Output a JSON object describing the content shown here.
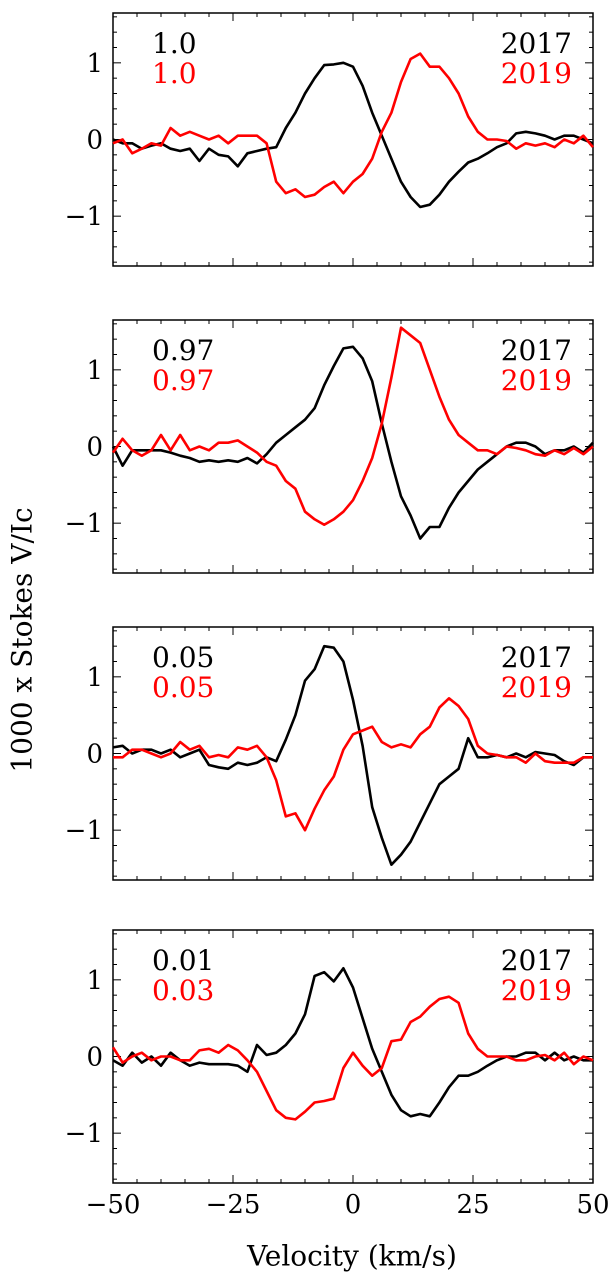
{
  "figure": {
    "xlabel": "Velocity (km/s)",
    "ylabel": "1000 x Stokes V/Ic"
  },
  "colors": {
    "2017": "#000000",
    "2019": "#ff0000"
  },
  "chart_data": [
    {
      "type": "line",
      "xlim": [
        -50,
        50
      ],
      "ylim": [
        -1.65,
        1.65
      ],
      "xticks": [
        -50,
        -25,
        0,
        25,
        50
      ],
      "yticks": [
        -1,
        0,
        1
      ],
      "grid": false,
      "legend": "top-right",
      "phase_labels": [
        "1.0",
        "1.0"
      ],
      "year_labels": [
        "2017",
        "2019"
      ],
      "series": [
        {
          "name": "2017",
          "x": [
            -50,
            -48,
            -46,
            -44,
            -42,
            -40,
            -38,
            -36,
            -34,
            -32,
            -30,
            -28,
            -26,
            -24,
            -22,
            -20,
            -18,
            -16,
            -14,
            -12,
            -10,
            -8,
            -6,
            -4,
            -2,
            0,
            2,
            4,
            6,
            8,
            10,
            12,
            14,
            16,
            18,
            20,
            22,
            24,
            26,
            28,
            30,
            32,
            34,
            36,
            38,
            40,
            42,
            44,
            46,
            48,
            50
          ],
          "y": [
            0.0,
            -0.05,
            -0.05,
            -0.12,
            -0.08,
            -0.05,
            -0.12,
            -0.15,
            -0.12,
            -0.28,
            -0.12,
            -0.2,
            -0.22,
            -0.35,
            -0.18,
            -0.15,
            -0.12,
            -0.1,
            0.15,
            0.35,
            0.6,
            0.8,
            0.97,
            0.98,
            1.0,
            0.95,
            0.7,
            0.35,
            0.05,
            -0.25,
            -0.55,
            -0.75,
            -0.88,
            -0.85,
            -0.72,
            -0.55,
            -0.42,
            -0.3,
            -0.25,
            -0.18,
            -0.1,
            -0.05,
            0.08,
            0.1,
            0.08,
            0.05,
            0.0,
            0.05,
            0.05,
            0.0,
            -0.05
          ]
        },
        {
          "name": "2019",
          "x": [
            -50,
            -48,
            -46,
            -44,
            -42,
            -40,
            -38,
            -36,
            -34,
            -32,
            -30,
            -28,
            -26,
            -24,
            -22,
            -20,
            -18,
            -16,
            -14,
            -12,
            -10,
            -8,
            -6,
            -4,
            -2,
            0,
            2,
            4,
            6,
            8,
            10,
            12,
            14,
            16,
            18,
            20,
            22,
            24,
            26,
            28,
            30,
            32,
            34,
            36,
            38,
            40,
            42,
            44,
            46,
            48,
            50
          ],
          "y": [
            -0.05,
            0.0,
            -0.18,
            -0.12,
            -0.05,
            -0.08,
            0.15,
            0.05,
            0.1,
            0.05,
            0.0,
            0.05,
            -0.05,
            0.05,
            0.05,
            0.05,
            -0.05,
            -0.55,
            -0.7,
            -0.65,
            -0.75,
            -0.72,
            -0.62,
            -0.55,
            -0.7,
            -0.55,
            -0.45,
            -0.25,
            0.1,
            0.35,
            0.75,
            1.05,
            1.12,
            0.95,
            0.95,
            0.8,
            0.6,
            0.3,
            0.1,
            0.0,
            0.0,
            -0.02,
            -0.12,
            -0.05,
            -0.08,
            -0.05,
            -0.1,
            0.0,
            -0.05,
            0.05,
            -0.1
          ]
        }
      ]
    },
    {
      "type": "line",
      "xlim": [
        -50,
        50
      ],
      "ylim": [
        -1.65,
        1.65
      ],
      "xticks": [
        -50,
        -25,
        0,
        25,
        50
      ],
      "yticks": [
        -1,
        0,
        1
      ],
      "grid": false,
      "legend": "top-right",
      "phase_labels": [
        "0.97",
        "0.97"
      ],
      "year_labels": [
        "2017",
        "2019"
      ],
      "series": [
        {
          "name": "2017",
          "x": [
            -50,
            -48,
            -46,
            -44,
            -42,
            -40,
            -38,
            -36,
            -34,
            -32,
            -30,
            -28,
            -26,
            -24,
            -22,
            -20,
            -18,
            -16,
            -14,
            -12,
            -10,
            -8,
            -6,
            -4,
            -2,
            0,
            2,
            4,
            6,
            8,
            10,
            12,
            14,
            16,
            18,
            20,
            22,
            24,
            26,
            28,
            30,
            32,
            34,
            36,
            38,
            40,
            42,
            44,
            46,
            48,
            50
          ],
          "y": [
            0.0,
            -0.25,
            -0.05,
            -0.05,
            -0.05,
            -0.05,
            -0.08,
            -0.12,
            -0.15,
            -0.2,
            -0.18,
            -0.2,
            -0.18,
            -0.2,
            -0.15,
            -0.22,
            -0.1,
            0.05,
            0.15,
            0.25,
            0.35,
            0.5,
            0.8,
            1.05,
            1.28,
            1.3,
            1.15,
            0.85,
            0.3,
            -0.2,
            -0.65,
            -0.9,
            -1.2,
            -1.05,
            -1.05,
            -0.8,
            -0.6,
            -0.45,
            -0.3,
            -0.2,
            -0.1,
            0.0,
            0.05,
            0.05,
            0.0,
            -0.1,
            -0.05,
            -0.05,
            0.0,
            -0.08,
            0.05
          ]
        },
        {
          "name": "2019",
          "x": [
            -50,
            -48,
            -46,
            -44,
            -42,
            -40,
            -38,
            -36,
            -34,
            -32,
            -30,
            -28,
            -26,
            -24,
            -22,
            -20,
            -18,
            -16,
            -14,
            -12,
            -10,
            -8,
            -6,
            -4,
            -2,
            0,
            2,
            4,
            6,
            8,
            10,
            12,
            14,
            16,
            18,
            20,
            22,
            24,
            26,
            28,
            30,
            32,
            34,
            36,
            38,
            40,
            42,
            44,
            46,
            48,
            50
          ],
          "y": [
            -0.08,
            0.1,
            -0.05,
            -0.12,
            -0.05,
            0.15,
            -0.05,
            0.15,
            -0.05,
            0.0,
            -0.05,
            0.05,
            0.05,
            0.08,
            0.0,
            -0.08,
            -0.2,
            -0.25,
            -0.45,
            -0.55,
            -0.85,
            -0.95,
            -1.02,
            -0.95,
            -0.85,
            -0.7,
            -0.45,
            -0.15,
            0.3,
            0.9,
            1.55,
            1.45,
            1.35,
            1.0,
            0.65,
            0.35,
            0.15,
            0.05,
            -0.05,
            -0.05,
            -0.1,
            0.0,
            -0.02,
            -0.05,
            -0.1,
            -0.12,
            -0.05,
            -0.1,
            -0.02,
            -0.1,
            0.0
          ]
        }
      ]
    },
    {
      "type": "line",
      "xlim": [
        -50,
        50
      ],
      "ylim": [
        -1.65,
        1.65
      ],
      "xticks": [
        -50,
        -25,
        0,
        25,
        50
      ],
      "yticks": [
        -1,
        0,
        1
      ],
      "grid": false,
      "legend": "top-right",
      "phase_labels": [
        "0.05",
        "0.05"
      ],
      "year_labels": [
        "2017",
        "2019"
      ],
      "series": [
        {
          "name": "2017",
          "x": [
            -50,
            -48,
            -46,
            -44,
            -42,
            -40,
            -38,
            -36,
            -34,
            -32,
            -30,
            -28,
            -26,
            -24,
            -22,
            -20,
            -18,
            -16,
            -14,
            -12,
            -10,
            -8,
            -6,
            -4,
            -2,
            0,
            2,
            4,
            6,
            8,
            10,
            12,
            14,
            16,
            18,
            20,
            22,
            24,
            26,
            28,
            30,
            32,
            34,
            36,
            38,
            40,
            42,
            44,
            46,
            48,
            50
          ],
          "y": [
            0.08,
            0.1,
            0.0,
            0.05,
            0.05,
            0.0,
            0.05,
            -0.05,
            0.0,
            0.05,
            -0.15,
            -0.18,
            -0.2,
            -0.12,
            -0.15,
            -0.12,
            -0.05,
            -0.1,
            0.18,
            0.5,
            0.95,
            1.1,
            1.4,
            1.38,
            1.2,
            0.7,
            0.1,
            -0.7,
            -1.1,
            -1.45,
            -1.32,
            -1.15,
            -0.9,
            -0.65,
            -0.4,
            -0.3,
            -0.2,
            0.2,
            -0.05,
            -0.05,
            -0.02,
            -0.05,
            0.0,
            -0.05,
            0.02,
            0.0,
            -0.02,
            -0.1,
            -0.15,
            -0.05,
            -0.05
          ]
        },
        {
          "name": "2019",
          "x": [
            -50,
            -48,
            -46,
            -44,
            -42,
            -40,
            -38,
            -36,
            -34,
            -32,
            -30,
            -28,
            -26,
            -24,
            -22,
            -20,
            -18,
            -16,
            -14,
            -12,
            -10,
            -8,
            -6,
            -4,
            -2,
            0,
            2,
            4,
            6,
            8,
            10,
            12,
            14,
            16,
            18,
            20,
            22,
            24,
            26,
            28,
            30,
            32,
            34,
            36,
            38,
            40,
            42,
            44,
            46,
            48,
            50
          ],
          "y": [
            -0.05,
            -0.05,
            0.05,
            0.05,
            0.0,
            -0.05,
            0.0,
            0.15,
            0.05,
            0.1,
            -0.05,
            -0.02,
            -0.05,
            0.08,
            0.05,
            0.1,
            -0.05,
            -0.35,
            -0.82,
            -0.78,
            -1.0,
            -0.72,
            -0.48,
            -0.3,
            0.05,
            0.25,
            0.3,
            0.35,
            0.15,
            0.08,
            0.12,
            0.08,
            0.25,
            0.35,
            0.6,
            0.72,
            0.62,
            0.45,
            0.1,
            0.0,
            -0.02,
            -0.05,
            -0.05,
            -0.12,
            0.0,
            -0.1,
            -0.12,
            -0.12,
            -0.12,
            -0.05,
            -0.05
          ]
        }
      ]
    },
    {
      "type": "line",
      "xlim": [
        -50,
        50
      ],
      "ylim": [
        -1.65,
        1.65
      ],
      "xticks": [
        -50,
        -25,
        0,
        25,
        50
      ],
      "yticks": [
        -1,
        0,
        1
      ],
      "grid": false,
      "legend": "top-right",
      "phase_labels": [
        "0.01",
        "0.03"
      ],
      "year_labels": [
        "2017",
        "2019"
      ],
      "series": [
        {
          "name": "2017",
          "x": [
            -50,
            -48,
            -46,
            -44,
            -42,
            -40,
            -38,
            -36,
            -34,
            -32,
            -30,
            -28,
            -26,
            -24,
            -22,
            -20,
            -18,
            -16,
            -14,
            -12,
            -10,
            -8,
            -6,
            -4,
            -2,
            0,
            2,
            4,
            6,
            8,
            10,
            12,
            14,
            16,
            18,
            20,
            22,
            24,
            26,
            28,
            30,
            32,
            34,
            36,
            38,
            40,
            42,
            44,
            46,
            48,
            50
          ],
          "y": [
            -0.05,
            -0.12,
            0.05,
            -0.08,
            0.0,
            -0.12,
            0.05,
            -0.05,
            -0.12,
            -0.08,
            -0.1,
            -0.1,
            -0.1,
            -0.12,
            -0.2,
            0.15,
            0.02,
            0.05,
            0.15,
            0.3,
            0.55,
            1.05,
            1.1,
            0.98,
            1.15,
            0.9,
            0.5,
            0.1,
            -0.2,
            -0.5,
            -0.7,
            -0.78,
            -0.75,
            -0.78,
            -0.6,
            -0.4,
            -0.25,
            -0.25,
            -0.2,
            -0.12,
            -0.05,
            0.0,
            0.0,
            0.05,
            0.05,
            -0.05,
            0.05,
            -0.05,
            0.0,
            -0.05,
            -0.05
          ]
        },
        {
          "name": "2019",
          "x": [
            -50,
            -48,
            -46,
            -44,
            -42,
            -40,
            -38,
            -36,
            -34,
            -32,
            -30,
            -28,
            -26,
            -24,
            -22,
            -20,
            -18,
            -16,
            -14,
            -12,
            -10,
            -8,
            -6,
            -4,
            -2,
            0,
            2,
            4,
            6,
            8,
            10,
            12,
            14,
            16,
            18,
            20,
            22,
            24,
            26,
            28,
            30,
            32,
            34,
            36,
            38,
            40,
            42,
            44,
            46,
            48,
            50
          ],
          "y": [
            0.12,
            -0.08,
            0.0,
            0.05,
            -0.05,
            0.0,
            0.0,
            -0.05,
            -0.05,
            0.08,
            0.1,
            0.05,
            0.15,
            0.08,
            -0.05,
            -0.2,
            -0.45,
            -0.7,
            -0.8,
            -0.82,
            -0.72,
            -0.6,
            -0.58,
            -0.55,
            -0.15,
            0.05,
            -0.12,
            -0.25,
            -0.15,
            0.2,
            0.22,
            0.45,
            0.52,
            0.65,
            0.75,
            0.78,
            0.7,
            0.3,
            0.1,
            0.0,
            0.0,
            0.0,
            -0.05,
            -0.05,
            0.0,
            0.02,
            -0.05,
            0.05,
            -0.1,
            0.0,
            -0.05
          ]
        }
      ]
    }
  ]
}
